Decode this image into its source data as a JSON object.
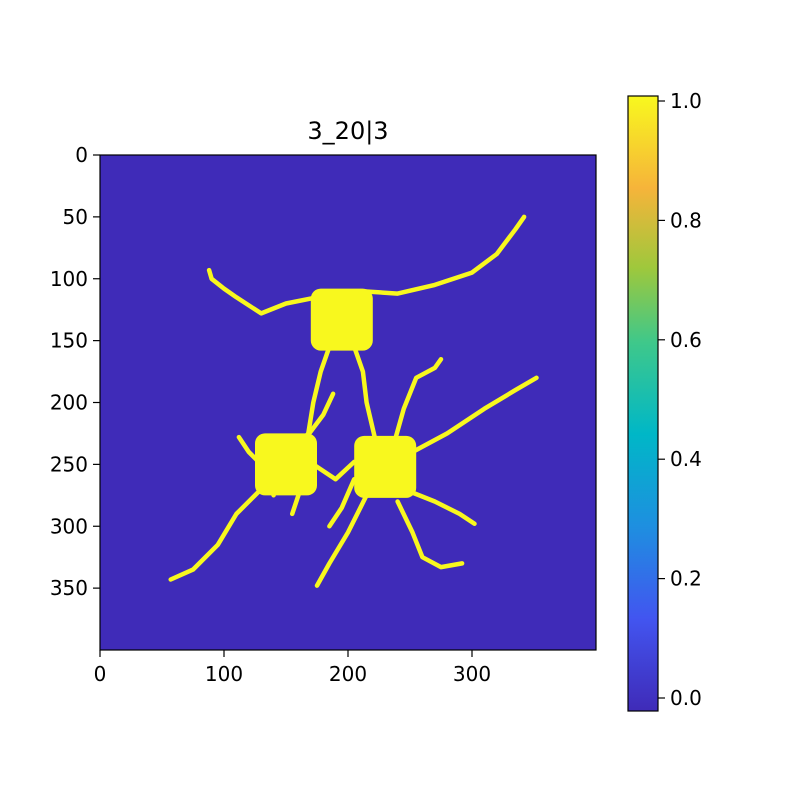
{
  "chart_data": {
    "type": "heatmap",
    "title": "3_20|3",
    "xlabel": "",
    "ylabel": "",
    "image_shape": [
      400,
      400
    ],
    "xlim": [
      0,
      400
    ],
    "ylim": [
      400,
      0
    ],
    "xticks": [
      0,
      100,
      200,
      300
    ],
    "yticks": [
      0,
      50,
      100,
      150,
      200,
      250,
      300,
      350
    ],
    "value_range": [
      0,
      1
    ],
    "background_value": 0,
    "foreground_value": 1,
    "background_color": "#3f2bb8",
    "foreground_color": "#f8f81e",
    "colorbar": {
      "vmin": 0.0,
      "vmax": 1.0,
      "ticks": [
        "0.0",
        "0.2",
        "0.4",
        "0.6",
        "0.8",
        "1.0"
      ],
      "tick_values": [
        0.0,
        0.2,
        0.4,
        0.6,
        0.8,
        1.0
      ],
      "gradient_stops": [
        {
          "offset": 0.0,
          "color": "#3f2bb8"
        },
        {
          "offset": 0.15,
          "color": "#4255f0"
        },
        {
          "offset": 0.3,
          "color": "#1e8fe0"
        },
        {
          "offset": 0.45,
          "color": "#00b7c7"
        },
        {
          "offset": 0.6,
          "color": "#3fc88a"
        },
        {
          "offset": 0.72,
          "color": "#9ec83c"
        },
        {
          "offset": 0.85,
          "color": "#f6b43a"
        },
        {
          "offset": 1.0,
          "color": "#f8f81e"
        }
      ]
    },
    "blobs": [
      {
        "center": [
          195,
          133
        ],
        "size": [
          50,
          50
        ],
        "value": 1
      },
      {
        "center": [
          150,
          250
        ],
        "size": [
          50,
          50
        ],
        "value": 1
      },
      {
        "center": [
          230,
          252
        ],
        "size": [
          50,
          50
        ],
        "value": 1
      }
    ],
    "branches": [
      [
        [
          175,
          115
        ],
        [
          150,
          120
        ],
        [
          130,
          128
        ],
        [
          110,
          115
        ],
        [
          100,
          108
        ],
        [
          90,
          100
        ],
        [
          88,
          93
        ]
      ],
      [
        [
          210,
          110
        ],
        [
          240,
          112
        ],
        [
          270,
          105
        ],
        [
          300,
          95
        ],
        [
          320,
          80
        ],
        [
          335,
          60
        ],
        [
          342,
          50
        ]
      ],
      [
        [
          185,
          155
        ],
        [
          178,
          175
        ],
        [
          172,
          200
        ],
        [
          168,
          225
        ],
        [
          160,
          235
        ]
      ],
      [
        [
          205,
          155
        ],
        [
          212,
          175
        ],
        [
          215,
          200
        ],
        [
          222,
          230
        ]
      ],
      [
        [
          165,
          230
        ],
        [
          180,
          210
        ],
        [
          188,
          193
        ]
      ],
      [
        [
          238,
          230
        ],
        [
          245,
          205
        ],
        [
          255,
          180
        ],
        [
          270,
          172
        ],
        [
          275,
          165
        ]
      ],
      [
        [
          252,
          240
        ],
        [
          280,
          225
        ],
        [
          310,
          205
        ],
        [
          335,
          190
        ],
        [
          352,
          180
        ]
      ],
      [
        [
          130,
          270
        ],
        [
          110,
          290
        ],
        [
          95,
          315
        ],
        [
          75,
          335
        ],
        [
          57,
          343
        ]
      ],
      [
        [
          140,
          275
        ],
        [
          130,
          250
        ],
        [
          120,
          240
        ],
        [
          112,
          228
        ]
      ],
      [
        [
          215,
          275
        ],
        [
          200,
          305
        ],
        [
          185,
          330
        ],
        [
          175,
          348
        ]
      ],
      [
        [
          240,
          280
        ],
        [
          252,
          305
        ],
        [
          260,
          325
        ],
        [
          275,
          333
        ],
        [
          292,
          330
        ]
      ],
      [
        [
          250,
          272
        ],
        [
          270,
          280
        ],
        [
          290,
          290
        ],
        [
          302,
          298
        ]
      ],
      [
        [
          205,
          262
        ],
        [
          195,
          285
        ],
        [
          185,
          300
        ]
      ],
      [
        [
          172,
          250
        ],
        [
          190,
          262
        ],
        [
          205,
          248
        ]
      ],
      [
        [
          160,
          275
        ],
        [
          155,
          290
        ]
      ]
    ]
  }
}
